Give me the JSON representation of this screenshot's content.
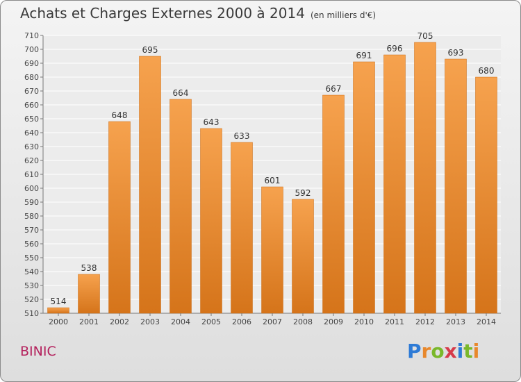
{
  "chart_data": {
    "type": "bar",
    "title": "Achats et Charges Externes 2000 à 2014",
    "unit_note": "(en milliers d'€)",
    "categories": [
      "2000",
      "2001",
      "2002",
      "2003",
      "2004",
      "2005",
      "2006",
      "2007",
      "2008",
      "2009",
      "2010",
      "2011",
      "2012",
      "2013",
      "2014"
    ],
    "values": [
      514,
      538,
      648,
      695,
      664,
      643,
      633,
      601,
      592,
      667,
      691,
      696,
      705,
      693,
      680
    ],
    "ylim": [
      510,
      710
    ],
    "ytick_step": 10,
    "grid": true,
    "bar_color_top": "#f6a24e",
    "bar_color_bottom": "#d5741a"
  },
  "place_name": "BINIC",
  "logo": {
    "letters": [
      "P",
      "r",
      "o",
      "x",
      "i",
      "t",
      "i"
    ],
    "colors": [
      "#2e7bd6",
      "#e8882c",
      "#7ab82b",
      "#d63a4a",
      "#2e7bd6",
      "#7ab82b",
      "#e8882c"
    ]
  }
}
